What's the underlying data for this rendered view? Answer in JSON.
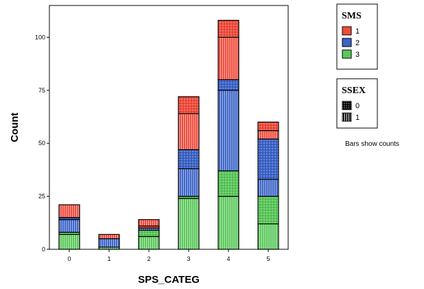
{
  "chart_data": {
    "type": "bar",
    "stacked": true,
    "xlabel": "SPS_CATEG",
    "ylabel": "Count",
    "categories": [
      "0",
      "1",
      "2",
      "3",
      "4",
      "5"
    ],
    "ylim": [
      0,
      115
    ],
    "yticks": [
      0,
      25,
      50,
      75,
      100
    ],
    "grid": false,
    "series_colors": {
      "1": "#f04c3c",
      "2": "#3c64c8",
      "3": "#5ac85a"
    },
    "segments": [
      {
        "category": "0",
        "values": [
          {
            "SMS": "3",
            "SSEX": "1",
            "value": 7
          },
          {
            "SMS": "3",
            "SSEX": "0",
            "value": 1
          },
          {
            "SMS": "2",
            "SSEX": "1",
            "value": 6
          },
          {
            "SMS": "2",
            "SSEX": "0",
            "value": 1
          },
          {
            "SMS": "1",
            "SSEX": "1",
            "value": 6
          }
        ]
      },
      {
        "category": "1",
        "values": [
          {
            "SMS": "3",
            "SSEX": "1",
            "value": 1
          },
          {
            "SMS": "2",
            "SSEX": "1",
            "value": 4
          },
          {
            "SMS": "1",
            "SSEX": "1",
            "value": 2
          }
        ]
      },
      {
        "category": "2",
        "values": [
          {
            "SMS": "3",
            "SSEX": "1",
            "value": 6
          },
          {
            "SMS": "3",
            "SSEX": "0",
            "value": 3
          },
          {
            "SMS": "2",
            "SSEX": "1",
            "value": 1
          },
          {
            "SMS": "1",
            "SSEX": "0",
            "value": 1
          },
          {
            "SMS": "1",
            "SSEX": "1",
            "value": 3
          }
        ]
      },
      {
        "category": "3",
        "values": [
          {
            "SMS": "3",
            "SSEX": "1",
            "value": 24
          },
          {
            "SMS": "3",
            "SSEX": "0",
            "value": 1
          },
          {
            "SMS": "2",
            "SSEX": "1",
            "value": 13
          },
          {
            "SMS": "2",
            "SSEX": "0",
            "value": 9
          },
          {
            "SMS": "1",
            "SSEX": "1",
            "value": 17
          },
          {
            "SMS": "1",
            "SSEX": "0",
            "value": 8
          }
        ]
      },
      {
        "category": "4",
        "values": [
          {
            "SMS": "3",
            "SSEX": "1",
            "value": 25
          },
          {
            "SMS": "3",
            "SSEX": "0",
            "value": 12
          },
          {
            "SMS": "2",
            "SSEX": "1",
            "value": 38
          },
          {
            "SMS": "2",
            "SSEX": "0",
            "value": 5
          },
          {
            "SMS": "1",
            "SSEX": "1",
            "value": 20
          },
          {
            "SMS": "1",
            "SSEX": "0",
            "value": 8
          }
        ]
      },
      {
        "category": "5",
        "values": [
          {
            "SMS": "3",
            "SSEX": "1",
            "value": 12
          },
          {
            "SMS": "3",
            "SSEX": "0",
            "value": 13
          },
          {
            "SMS": "2",
            "SSEX": "1",
            "value": 8
          },
          {
            "SMS": "2",
            "SSEX": "0",
            "value": 19
          },
          {
            "SMS": "1",
            "SSEX": "1",
            "value": 4
          },
          {
            "SMS": "1",
            "SSEX": "0",
            "value": 4
          }
        ]
      }
    ],
    "legends": [
      {
        "title": "SMS",
        "type": "color",
        "entries": [
          {
            "label": "1",
            "color": "#f04c3c"
          },
          {
            "label": "2",
            "color": "#3c64c8"
          },
          {
            "label": "3",
            "color": "#5ac85a"
          }
        ]
      },
      {
        "title": "SSEX",
        "type": "pattern",
        "entries": [
          {
            "label": "0",
            "pattern": "dots"
          },
          {
            "label": "1",
            "pattern": "vertical-lines"
          }
        ]
      }
    ],
    "legend_placement": "right",
    "annotation": "Bars show counts"
  }
}
